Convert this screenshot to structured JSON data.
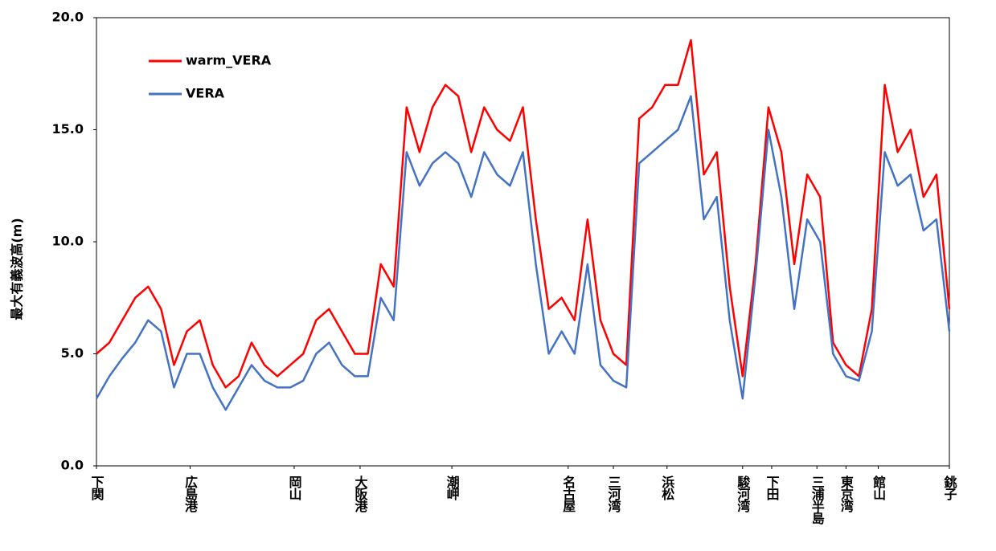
{
  "chart_data": {
    "type": "line",
    "y_label": "最大有義波高(m)",
    "x": [
      0,
      2,
      4,
      6,
      8,
      10,
      12,
      14,
      16,
      18,
      20,
      22,
      24,
      26,
      28,
      30,
      32,
      34,
      36,
      38,
      40,
      42,
      44,
      46,
      48,
      50,
      52,
      54,
      56,
      58,
      60,
      62,
      64,
      66,
      68,
      70,
      72,
      74,
      76,
      78,
      80,
      82,
      84,
      86,
      88,
      90,
      92,
      94,
      96,
      98,
      100,
      102,
      104,
      106,
      108,
      110,
      112,
      114,
      116,
      118,
      120,
      122,
      124,
      126,
      128,
      130,
      132
    ],
    "series": [
      {
        "name": "warm_VERA",
        "color": "#ff0000",
        "values": [
          5.0,
          5.5,
          6.5,
          7.5,
          8.0,
          7.0,
          4.5,
          6.0,
          6.5,
          4.5,
          3.5,
          4.0,
          5.5,
          4.5,
          4.0,
          4.5,
          5.0,
          6.5,
          7.0,
          6.0,
          5.0,
          5.0,
          9.0,
          8.0,
          16.0,
          14.0,
          16.0,
          17.0,
          16.5,
          14.0,
          16.0,
          15.0,
          14.5,
          16.0,
          11.0,
          7.0,
          7.5,
          6.5,
          11.0,
          6.5,
          5.0,
          4.5,
          15.5,
          16.0,
          17.0,
          17.0,
          19.0,
          13.0,
          14.0,
          8.0,
          4.0,
          9.0,
          16.0,
          14.0,
          9.0,
          13.0,
          12.0,
          5.5,
          4.5,
          4.0,
          7.0,
          17.0,
          14.0,
          15.0,
          12.0,
          13.0,
          7.0
        ]
      },
      {
        "name": "VERA",
        "color": "#4472c4",
        "values": [
          3.0,
          4.0,
          4.8,
          5.5,
          6.5,
          6.0,
          3.5,
          5.0,
          5.0,
          3.5,
          2.5,
          3.5,
          4.5,
          3.8,
          3.5,
          3.5,
          3.8,
          5.0,
          5.5,
          4.5,
          4.0,
          4.0,
          7.5,
          6.5,
          14.0,
          12.5,
          13.5,
          14.0,
          13.5,
          12.0,
          14.0,
          13.0,
          12.5,
          14.0,
          9.0,
          5.0,
          6.0,
          5.0,
          9.0,
          4.5,
          3.8,
          3.5,
          13.5,
          14.0,
          14.5,
          15.0,
          16.5,
          11.0,
          12.0,
          6.5,
          3.0,
          8.5,
          15.0,
          12.0,
          7.0,
          11.0,
          10.0,
          5.0,
          4.0,
          3.8,
          6.0,
          14.0,
          12.5,
          13.0,
          10.5,
          11.0,
          6.0
        ]
      }
    ],
    "xlim": [
      0,
      132
    ],
    "xticks": [
      {
        "value": 0,
        "label": "下関"
      },
      {
        "value": 14.5,
        "label": "広島港"
      },
      {
        "value": 30.6,
        "label": "岡山"
      },
      {
        "value": 40.8,
        "label": "大阪港"
      },
      {
        "value": 55,
        "label": "潮岬"
      },
      {
        "value": 73,
        "label": "名古屋"
      },
      {
        "value": 80,
        "label": "三河湾"
      },
      {
        "value": 88.3,
        "label": "浜松"
      },
      {
        "value": 100,
        "label": "駿河湾"
      },
      {
        "value": 104.5,
        "label": "下田"
      },
      {
        "value": 111.5,
        "label": "三浦半島"
      },
      {
        "value": 116,
        "label": "東京湾"
      },
      {
        "value": 121,
        "label": "館山"
      },
      {
        "value": 132,
        "label": "銚子"
      }
    ],
    "ylim": [
      0,
      20
    ],
    "yticks": [
      {
        "value": 0,
        "label": "0.0"
      },
      {
        "value": 5,
        "label": "5.0"
      },
      {
        "value": 10,
        "label": "10.0"
      },
      {
        "value": 15,
        "label": "15.0"
      },
      {
        "value": 20,
        "label": "20.0"
      }
    ],
    "grid": false
  }
}
